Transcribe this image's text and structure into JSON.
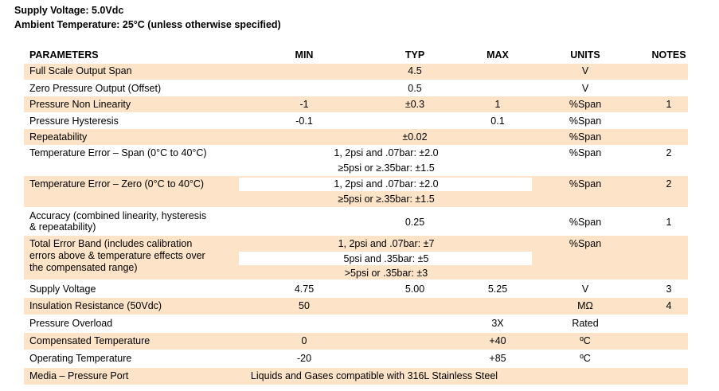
{
  "header": {
    "supply": "Supply Voltage: 5.0Vdc",
    "ambient": "Ambient Temperature: 25°C (unless otherwise specified)"
  },
  "columns": {
    "parameters": "PARAMETERS",
    "min": "MIN",
    "typ": "TYP",
    "max": "MAX",
    "units": "UNITS",
    "notes": "NOTES"
  },
  "rows": {
    "fso": {
      "p": "Full Scale Output Span",
      "typ": "4.5",
      "units": "V"
    },
    "zpo": {
      "p": "Zero Pressure Output (Offset)",
      "typ": "0.5",
      "units": "V"
    },
    "pnl": {
      "p": "Pressure Non Linearity",
      "min": "-1",
      "typ": "±0.3",
      "max": "1",
      "units": "%Span",
      "notes": "1"
    },
    "ph": {
      "p": "Pressure Hysteresis",
      "min": "-0.1",
      "max": "0.1",
      "units": "%Span"
    },
    "rep": {
      "p": "Repeatability",
      "typ": "±0.02",
      "units": "%Span"
    },
    "tes": {
      "p": "Temperature Error – Span (0°C to 40°C)",
      "l1": "1, 2psi and .07bar: ±2.0",
      "l2": "≥5psi or ≥.35bar: ±1.5",
      "units": "%Span",
      "notes": "2"
    },
    "tez": {
      "p": "Temperature Error – Zero (0°C to 40°C)",
      "l1": "1, 2psi and .07bar: ±2.0",
      "l2": "≥5psi or ≥.35bar: ±1.5",
      "units": "%Span",
      "notes": "2"
    },
    "acc": {
      "p1": "Accuracy (combined linearity, hysteresis",
      "p2": "& repeatability)",
      "typ": "0.25",
      "units": "%Span",
      "notes": "1"
    },
    "teb": {
      "p1": "Total Error Band (includes calibration",
      "p2": "errors above & temperature effects over",
      "p3": "the compensated range)",
      "l1": "1, 2psi and .07bar: ±7",
      "l2": "5psi and .35bar: ±5",
      "l3": ">5psi or .35bar: ±3",
      "units": "%Span"
    },
    "sv": {
      "p": "Supply Voltage",
      "min": "4.75",
      "typ": "5.00",
      "max": "5.25",
      "units": "V",
      "notes": "3"
    },
    "ir": {
      "p": "Insulation Resistance (50Vdc)",
      "min": "50",
      "units": "MΩ",
      "notes": "4"
    },
    "po": {
      "p": "Pressure Overload",
      "max": "3X",
      "units": "Rated"
    },
    "ct": {
      "p": "Compensated Temperature",
      "min": "0",
      "max": "+40",
      "units": "ºC"
    },
    "ot": {
      "p": "Operating Temperature",
      "min": "-20",
      "max": "+85",
      "units": "ºC"
    },
    "media": {
      "p": "Media – Pressure Port",
      "text": "Liquids and Gases compatible with 316L Stainless Steel"
    }
  },
  "colors": {
    "row_tint": "#fde3c8"
  }
}
